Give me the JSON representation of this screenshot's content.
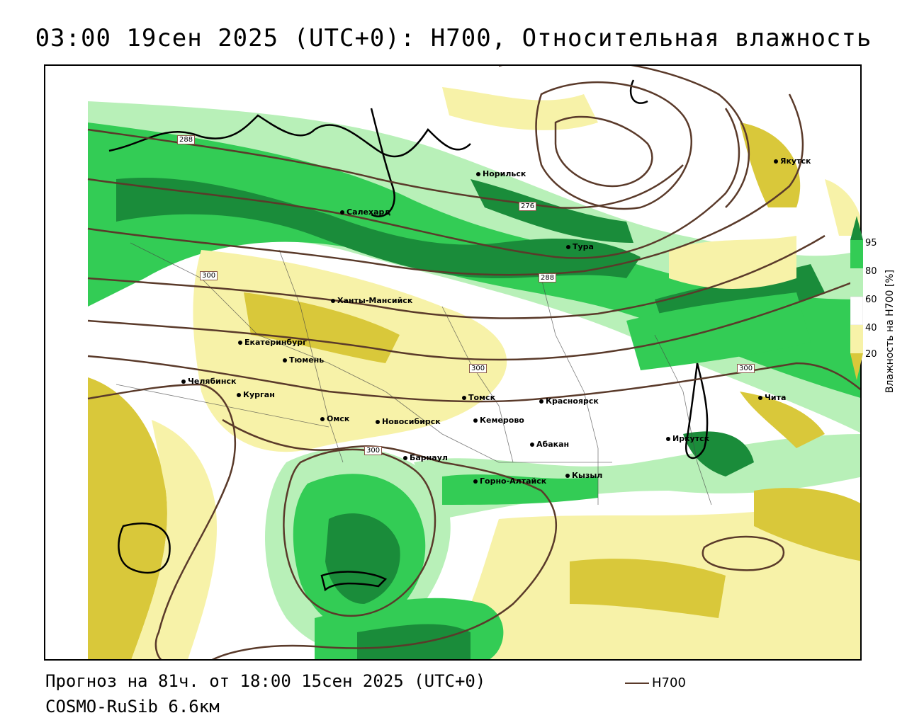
{
  "title": "03:00 19сен 2025 (UTC+0): H700, Относительная влажность",
  "footer": {
    "forecast": "Прогноз на 81ч. от 18:00 15сен 2025 (UTC+0)",
    "model": "COSMO-RuSib 6.6км"
  },
  "legend": {
    "label": "H700"
  },
  "colorbar": {
    "label": "Влажность на H700 [%]",
    "ticks": [
      "95",
      "80",
      "60",
      "40",
      "20"
    ],
    "colors": {
      "95": "#1a8c3a",
      "80": "#33cc55",
      "60": "#b8f0b8",
      "40": "#ffffff",
      "20": "#f7f2a8",
      "low": "#d9c83a"
    }
  },
  "cities": [
    {
      "name": "Норильск"
    },
    {
      "name": "Якутск"
    },
    {
      "name": "Салехард"
    },
    {
      "name": "Тура"
    },
    {
      "name": "Ханты-Мансийск"
    },
    {
      "name": "Екатеринбург"
    },
    {
      "name": "Тюмень"
    },
    {
      "name": "Челябинск"
    },
    {
      "name": "Курган"
    },
    {
      "name": "Омск"
    },
    {
      "name": "Новосибирск"
    },
    {
      "name": "Томск"
    },
    {
      "name": "Кемерово"
    },
    {
      "name": "Красноярск"
    },
    {
      "name": "Абакан"
    },
    {
      "name": "Барнаул"
    },
    {
      "name": "Горно-Алтайск"
    },
    {
      "name": "Кызыл"
    },
    {
      "name": "Иркутск"
    },
    {
      "name": "Чита"
    }
  ],
  "contour_labels": [
    "288",
    "276",
    "300",
    "288",
    "300",
    "300",
    "300"
  ],
  "colors": {
    "contour": "#5a3a2a",
    "dark_green": "#1a8c3a",
    "green": "#33cc55",
    "light_green": "#b8f0b8",
    "light_yellow": "#f7f2a8",
    "olive_yellow": "#d9c83a"
  }
}
